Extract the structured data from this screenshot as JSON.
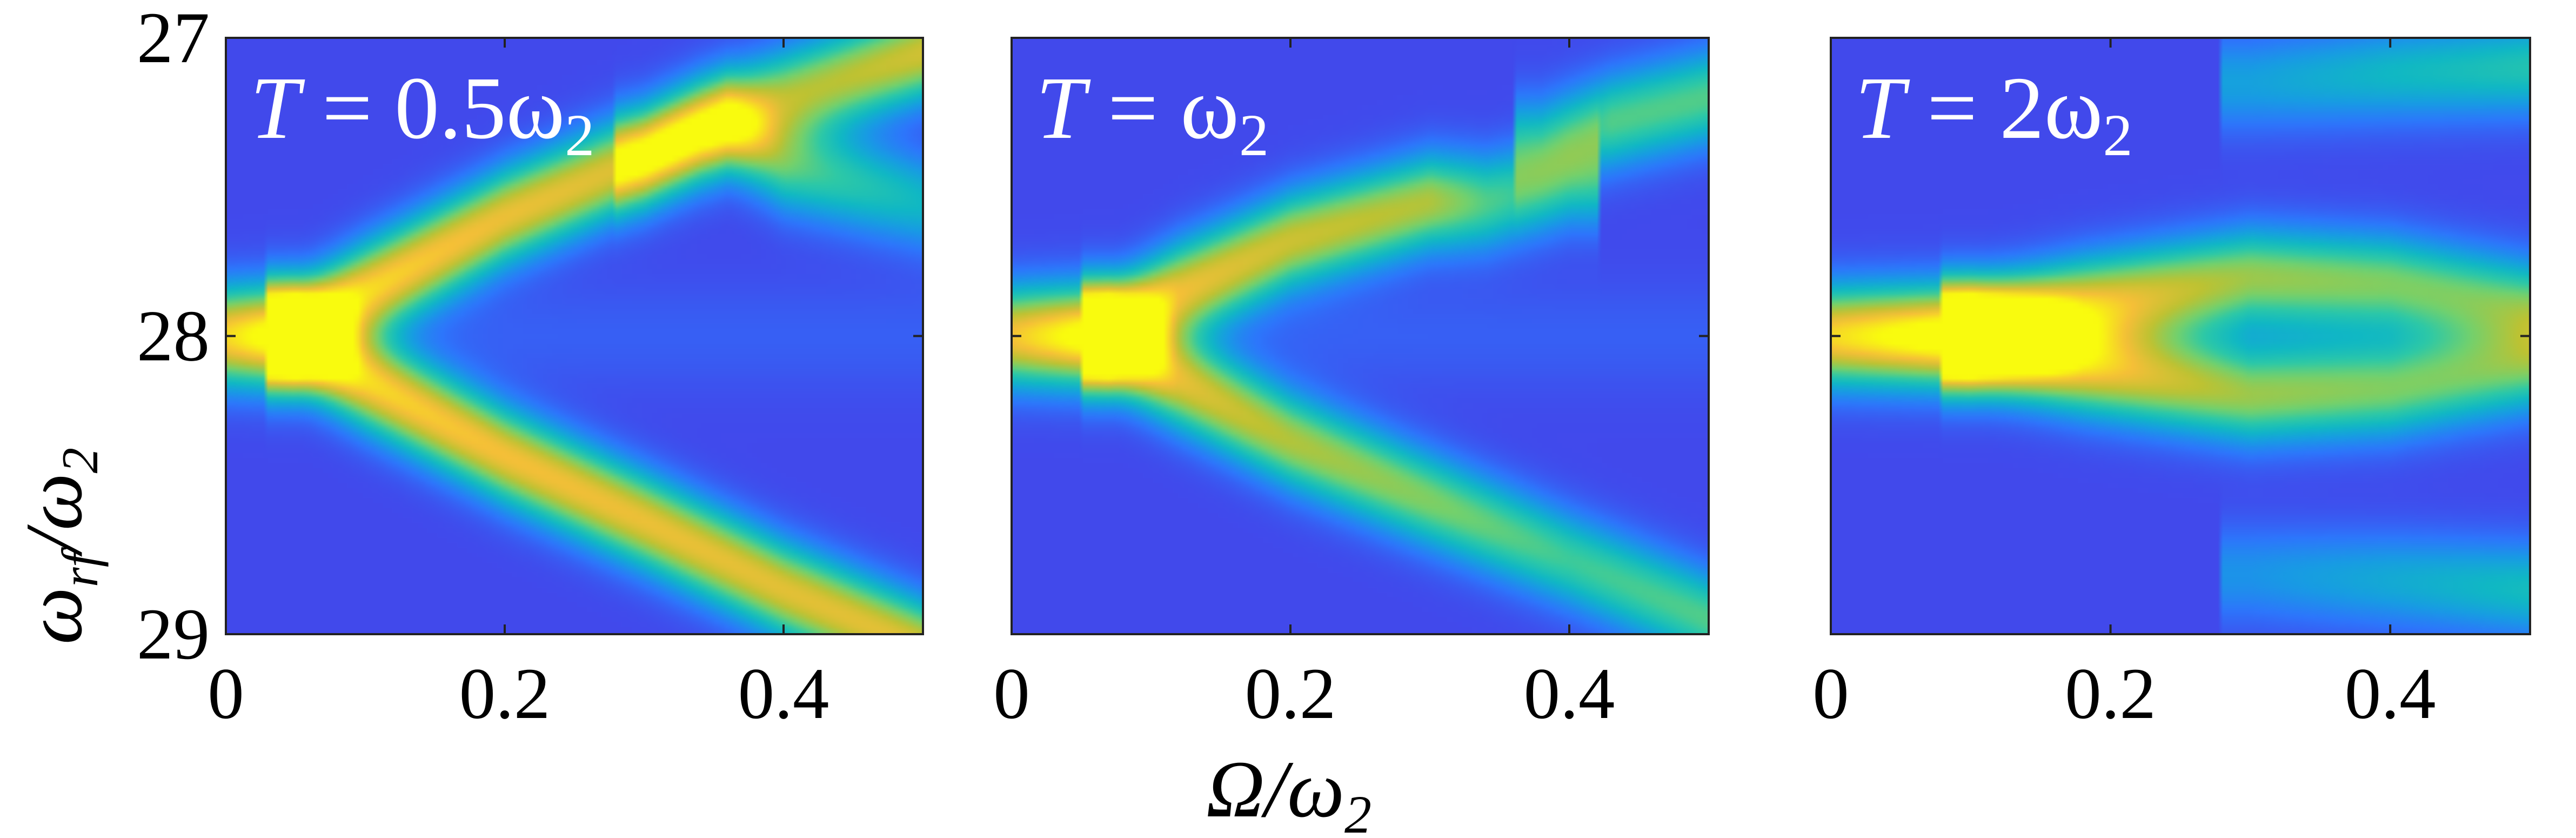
{
  "chart_data": [
    {
      "type": "heatmap",
      "panel_label": {
        "var": "T",
        "eq": "=",
        "value": "0.5ω",
        "sub": "2"
      },
      "x_range": [
        0,
        0.5
      ],
      "y_range": [
        27,
        29
      ],
      "y_inverted": true,
      "ridges": [
        {
          "x": [
            0.0,
            0.05,
            0.1,
            0.2,
            0.3,
            0.34,
            0.4,
            0.5
          ],
          "y": [
            28.0,
            28.0,
            27.85,
            27.6,
            27.4,
            27.3,
            27.2,
            27.05
          ],
          "peak": [
            0.75,
            0.98,
            0.78,
            0.72,
            0.68,
            0.6,
            0.58,
            0.66
          ]
        },
        {
          "x": [
            0.05,
            0.1,
            0.2,
            0.3,
            0.4,
            0.5
          ],
          "y": [
            28.0,
            28.15,
            28.4,
            28.62,
            28.85,
            29.05
          ],
          "peak": [
            0.98,
            0.78,
            0.74,
            0.72,
            0.7,
            0.7
          ]
        },
        {
          "x": [
            0.3,
            0.36,
            0.4,
            0.5
          ],
          "y": [
            27.4,
            27.3,
            27.42,
            27.55
          ],
          "peak": [
            0.3,
            0.45,
            0.45,
            0.3
          ]
        }
      ]
    },
    {
      "type": "heatmap",
      "panel_label": {
        "var": "T",
        "eq": "=",
        "value": "ω",
        "sub": "2"
      },
      "x_range": [
        0,
        0.5
      ],
      "y_range": [
        27,
        29
      ],
      "y_inverted": true,
      "ridges": [
        {
          "x": [
            0.0,
            0.07,
            0.12,
            0.2,
            0.3,
            0.34,
            0.4
          ],
          "y": [
            28.0,
            28.0,
            27.85,
            27.68,
            27.55,
            27.55,
            27.48
          ],
          "peak": [
            0.7,
            0.96,
            0.7,
            0.65,
            0.6,
            0.45,
            0.35
          ]
        },
        {
          "x": [
            0.07,
            0.12,
            0.2,
            0.3,
            0.4,
            0.5
          ],
          "y": [
            28.0,
            28.15,
            28.35,
            28.55,
            28.75,
            28.95
          ],
          "peak": [
            0.96,
            0.68,
            0.6,
            0.52,
            0.42,
            0.45
          ]
        },
        {
          "x": [
            0.38,
            0.43,
            0.5
          ],
          "y": [
            27.35,
            27.28,
            27.2
          ],
          "peak": [
            0.3,
            0.45,
            0.45
          ]
        }
      ]
    },
    {
      "type": "heatmap",
      "panel_label": {
        "var": "T",
        "eq": "=",
        "value": "2ω",
        "sub": "2"
      },
      "x_range": [
        0,
        0.5
      ],
      "y_range": [
        27,
        29
      ],
      "y_inverted": true,
      "ridges": [
        {
          "x": [
            0.0,
            0.1,
            0.18,
            0.3,
            0.4,
            0.5
          ],
          "y": [
            28.0,
            28.0,
            27.9,
            27.8,
            27.82,
            27.9
          ],
          "peak": [
            0.75,
            0.98,
            0.7,
            0.55,
            0.5,
            0.45
          ]
        },
        {
          "x": [
            0.1,
            0.18,
            0.3,
            0.4,
            0.5
          ],
          "y": [
            28.0,
            28.1,
            28.2,
            28.18,
            28.1
          ],
          "peak": [
            0.98,
            0.7,
            0.55,
            0.5,
            0.45
          ]
        },
        {
          "x": [
            0.3,
            0.4,
            0.5
          ],
          "y": [
            27.15,
            27.12,
            27.1
          ],
          "peak": [
            0.22,
            0.3,
            0.36
          ]
        },
        {
          "x": [
            0.3,
            0.4,
            0.5
          ],
          "y": [
            28.8,
            28.82,
            28.85
          ],
          "peak": [
            0.18,
            0.25,
            0.32
          ]
        }
      ]
    }
  ],
  "axes": {
    "x_ticks": [
      "0",
      "0.2",
      "0.4"
    ],
    "x_tick_values": [
      0,
      0.2,
      0.4
    ],
    "y_ticks": [
      "27",
      "28",
      "29"
    ],
    "y_tick_values": [
      27,
      28,
      29
    ],
    "xlabel": {
      "main": "Ω/ω",
      "sub": "2"
    },
    "ylabel": {
      "main": "ω",
      "sub1": "rf",
      "mid": "/ω",
      "sub2": "2"
    }
  },
  "colormap": "parula",
  "colors": {
    "low": "#3e26a8",
    "mid": "#2eb7a4",
    "high": "#f9fb0e",
    "label": "#ffffff"
  }
}
